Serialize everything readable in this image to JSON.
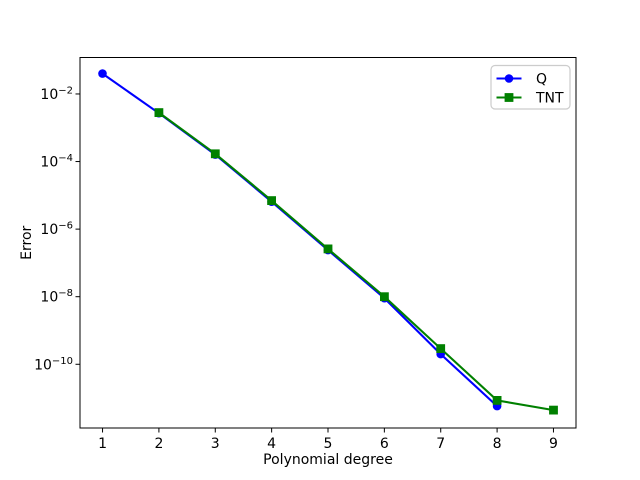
{
  "chart_data": {
    "type": "line",
    "title": "",
    "xlabel": "Polynomial degree",
    "ylabel": "Error",
    "xscale": "linear",
    "yscale": "log",
    "xlim": [
      0.6,
      9.4
    ],
    "ylim": [
      1.3e-12,
      0.12
    ],
    "x_ticks": [
      1,
      2,
      3,
      4,
      5,
      6,
      7,
      8,
      9
    ],
    "y_tick_exponents": [
      -2,
      -4,
      -6,
      -8,
      -10
    ],
    "grid": false,
    "legend": {
      "position": "upper right"
    },
    "series": [
      {
        "name": "Q",
        "color": "#0000ff",
        "marker": "circle",
        "x": [
          1,
          2,
          3,
          4,
          5,
          6,
          7,
          8
        ],
        "y": [
          0.04,
          0.0027,
          0.00016,
          6.5e-06,
          2.4e-07,
          9e-09,
          2e-10,
          5.8e-12
        ]
      },
      {
        "name": "TNT",
        "color": "#008000",
        "marker": "square",
        "x": [
          2,
          3,
          4,
          5,
          6,
          7,
          8,
          9
        ],
        "y": [
          0.0028,
          0.00017,
          7e-06,
          2.6e-07,
          1e-08,
          2.9e-10,
          8.5e-12,
          4.4e-12
        ]
      }
    ],
    "colors": {
      "background": "#ffffff",
      "axes": "#000000",
      "legend_border": "#cccccc"
    }
  }
}
